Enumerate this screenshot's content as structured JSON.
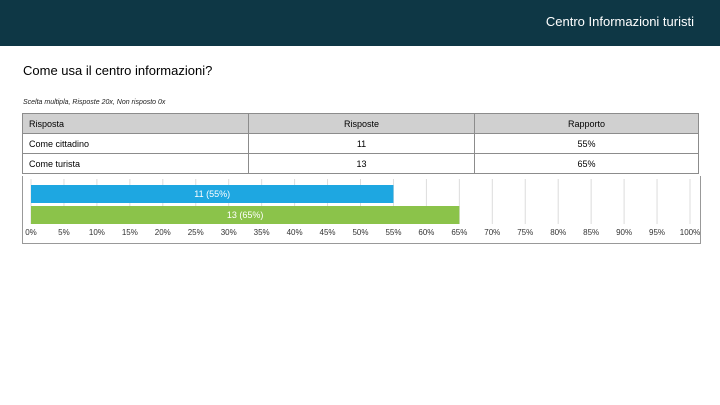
{
  "header": {
    "title": "Centro Informazioni turisti"
  },
  "question": "Come usa il centro informazioni?",
  "meta": "Scelta multipla, Risposte 20x, Non risposto 0x",
  "table": {
    "headers": [
      "Risposta",
      "Risposte",
      "Rapporto"
    ],
    "rows": [
      [
        "Come cittadino",
        "11",
        "55%"
      ],
      [
        "Come turista",
        "13",
        "65%"
      ]
    ]
  },
  "colors": {
    "header_bg": "#0e3745",
    "bar1": "#1ea7e1",
    "bar2": "#8bc34a"
  },
  "chart_data": {
    "type": "bar",
    "orientation": "horizontal",
    "categories": [
      "Come cittadino",
      "Come turista"
    ],
    "values": [
      55,
      65
    ],
    "data_labels": [
      "11 (55%)",
      "13 (65%)"
    ],
    "colors": [
      "#1ea7e1",
      "#8bc34a"
    ],
    "xlim": [
      0,
      100
    ],
    "xticks": [
      "0%",
      "5%",
      "10%",
      "15%",
      "20%",
      "25%",
      "30%",
      "35%",
      "40%",
      "45%",
      "50%",
      "55%",
      "60%",
      "65%",
      "70%",
      "75%",
      "80%",
      "85%",
      "90%",
      "95%",
      "100%"
    ],
    "grid": true
  }
}
